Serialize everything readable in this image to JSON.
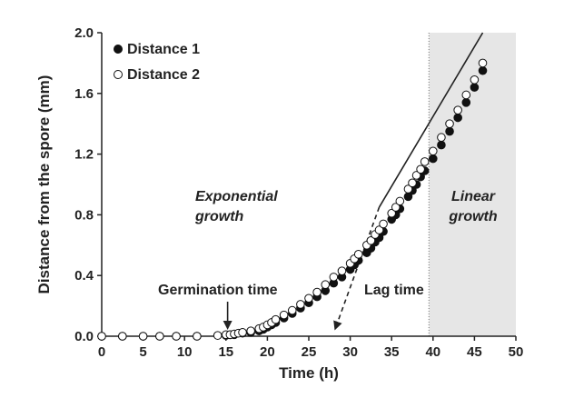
{
  "chart_data": {
    "type": "scatter",
    "xlabel": "Time (h)",
    "ylabel": "Distance from the spore (mm)",
    "xlim": [
      0,
      50
    ],
    "ylim": [
      0,
      2.0
    ],
    "x_ticks": [
      0,
      5,
      10,
      15,
      20,
      25,
      30,
      35,
      40,
      45,
      50
    ],
    "y_ticks": [
      0.0,
      0.4,
      0.8,
      1.2,
      1.6,
      2.0
    ],
    "x_tick_labels": [
      "0",
      "5",
      "10",
      "15",
      "20",
      "25",
      "30",
      "35",
      "40",
      "45",
      "50"
    ],
    "y_tick_labels": [
      "0.0",
      "0.4",
      "0.8",
      "1.2",
      "1.6",
      "2.0"
    ],
    "grid": false,
    "legend_position": "top-left",
    "shaded_region": {
      "x_start": 39.5,
      "x_end": 50,
      "color": "#e6e6e6"
    },
    "fit_line": {
      "x": [
        33.5,
        46
      ],
      "y": [
        0.85,
        2.0
      ]
    },
    "lag_line": {
      "x": [
        33.5,
        28.2
      ],
      "y": [
        0.85,
        0.05
      ]
    },
    "series": [
      {
        "name": "Distance 1",
        "marker": "filled",
        "x": [
          0,
          2.5,
          5,
          7,
          9,
          11.5,
          15,
          15.5,
          16,
          17,
          18,
          19,
          19.5,
          20,
          20.5,
          21,
          22,
          23,
          24,
          25,
          26,
          27,
          28,
          29,
          30,
          30.5,
          31,
          32,
          32.5,
          33,
          33.5,
          34,
          35,
          35.5,
          36,
          37,
          37.5,
          38,
          38.5,
          39,
          40,
          41,
          42,
          43,
          44,
          45,
          46
        ],
        "y": [
          0,
          0,
          0,
          0,
          0,
          0,
          0.005,
          0.01,
          0.01,
          0.02,
          0.025,
          0.035,
          0.045,
          0.06,
          0.075,
          0.09,
          0.12,
          0.15,
          0.185,
          0.22,
          0.26,
          0.3,
          0.35,
          0.39,
          0.44,
          0.47,
          0.5,
          0.55,
          0.58,
          0.62,
          0.65,
          0.69,
          0.77,
          0.8,
          0.84,
          0.92,
          0.96,
          1.0,
          1.05,
          1.09,
          1.17,
          1.26,
          1.35,
          1.44,
          1.54,
          1.64,
          1.75
        ]
      },
      {
        "name": "Distance 2",
        "marker": "open",
        "x": [
          0,
          2.5,
          5,
          7,
          9,
          11.5,
          14,
          15,
          15.5,
          16,
          16.5,
          17,
          18,
          19,
          19.5,
          20,
          20.5,
          21,
          22,
          23,
          24,
          25,
          26,
          27,
          28,
          29,
          30,
          30.5,
          31,
          32,
          32.5,
          33,
          33.5,
          34,
          35,
          35.5,
          36,
          37,
          37.5,
          38,
          38.5,
          39,
          40,
          41,
          42,
          43,
          44,
          45,
          46
        ],
        "y": [
          0,
          0,
          0,
          0,
          0,
          0,
          0.005,
          0.01,
          0.01,
          0.015,
          0.02,
          0.025,
          0.035,
          0.05,
          0.06,
          0.075,
          0.09,
          0.11,
          0.14,
          0.17,
          0.21,
          0.25,
          0.29,
          0.34,
          0.39,
          0.43,
          0.48,
          0.51,
          0.54,
          0.6,
          0.63,
          0.67,
          0.7,
          0.74,
          0.81,
          0.85,
          0.89,
          0.97,
          1.01,
          1.06,
          1.1,
          1.15,
          1.22,
          1.31,
          1.4,
          1.49,
          1.59,
          1.69,
          1.8
        ]
      }
    ],
    "annotations": {
      "exponential_line1": "Exponential",
      "exponential_line2": "growth",
      "linear_line1": "Linear",
      "linear_line2": "growth",
      "germination": "Germination time",
      "lag": "Lag time"
    },
    "arrows": {
      "germination_x": 15.2,
      "lag_x": 28.2
    }
  }
}
